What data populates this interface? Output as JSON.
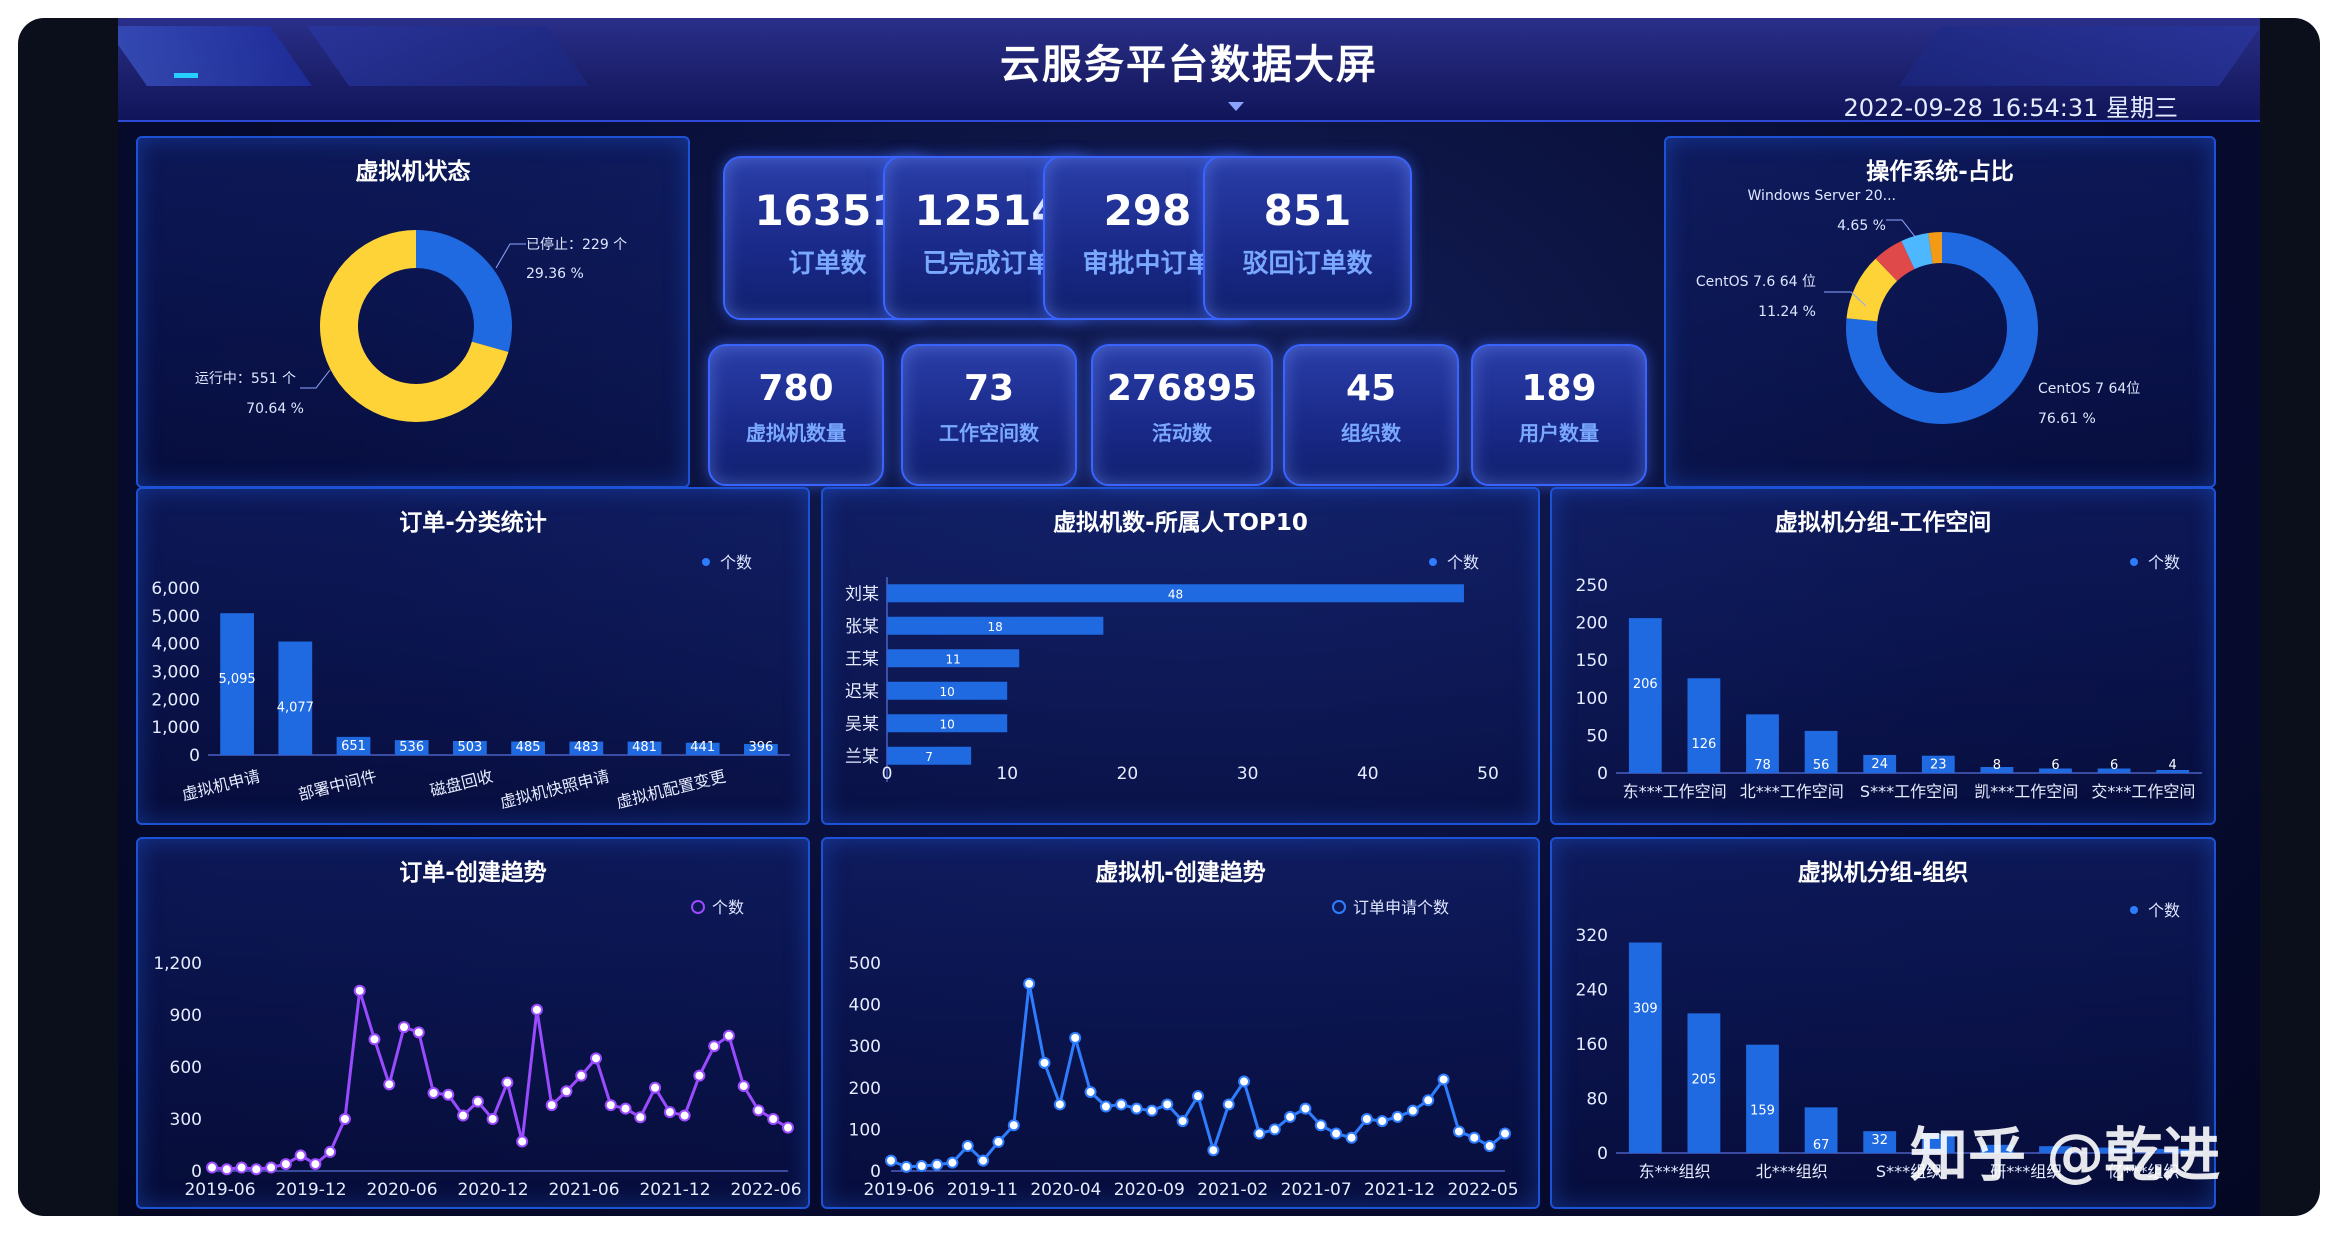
{
  "header": {
    "title": "云服务平台数据大屏",
    "datetime": "2022-09-28 16:54:31 星期三"
  },
  "kpis_top": [
    {
      "value": "16351",
      "label": "订单数"
    },
    {
      "value": "12514",
      "label": "已完成订单"
    },
    {
      "value": "298",
      "label": "审批中订单"
    },
    {
      "value": "851",
      "label": "驳回订单数"
    }
  ],
  "kpis_bottom": [
    {
      "value": "780",
      "label": "虚拟机数量"
    },
    {
      "value": "73",
      "label": "工作空间数"
    },
    {
      "value": "276895",
      "label": "活动数"
    },
    {
      "value": "45",
      "label": "组织数"
    },
    {
      "value": "189",
      "label": "用户数量"
    }
  ],
  "panels": {
    "vm_status": "虚拟机状态",
    "os_share": "操作系统-占比",
    "order_category": "订单-分类统计",
    "vm_top10": "虚拟机数-所属人TOP10",
    "vm_group_workspace": "虚拟机分组-工作空间",
    "order_trend": "订单-创建趋势",
    "vm_trend": "虚拟机-创建趋势",
    "vm_group_org": "虚拟机分组-组织"
  },
  "watermark": "知乎 @乾进",
  "colors": {
    "blue": "#1f6ae0",
    "yellow": "#fdd338",
    "red": "#e0494a",
    "orange": "#f39a17",
    "cyan": "#4db8ff",
    "purple": "#9b4bff",
    "line_blue": "#2f7dff"
  },
  "chart_data": [
    {
      "type": "pie",
      "id": "vm_status",
      "title": "虚拟机状态",
      "slices": [
        {
          "label_top": "已停止：229 个",
          "label_bottom": "29.36 %",
          "value": 229
        },
        {
          "label_top": "运行中：551 个",
          "label_bottom": "70.64 %",
          "value": 551
        }
      ]
    },
    {
      "type": "pie",
      "id": "os_share",
      "title": "操作系统-占比",
      "slices": [
        {
          "label_top": "CentOS 7 64位",
          "label_bottom": "76.61 %",
          "value": 76.61
        },
        {
          "label_top": "CentOS 7.6 64 位",
          "label_bottom": "11.24 %",
          "value": 11.24
        },
        {
          "label_top": "",
          "label_bottom": "",
          "value": 5.2
        },
        {
          "label_top": "Windows Server 20...",
          "label_bottom": "4.65 %",
          "value": 4.65
        },
        {
          "label_top": "",
          "label_bottom": "",
          "value": 2.3
        }
      ]
    },
    {
      "type": "bar",
      "id": "order_category",
      "title": "订单-分类统计",
      "legend": "个数",
      "categories": [
        "虚拟机申请",
        "",
        "部署中间件",
        "",
        "磁盘回收",
        "",
        "虚拟机快照申请",
        "",
        "虚拟机配置变更",
        ""
      ],
      "values": [
        5095,
        4077,
        651,
        536,
        503,
        485,
        483,
        481,
        441,
        396
      ],
      "data_labels": [
        "5,095",
        "4,077",
        "651",
        "536",
        "503",
        "485",
        "483",
        "481",
        "441",
        "396"
      ],
      "ylim": [
        0,
        6000
      ],
      "yticks": [
        "0",
        "1,000",
        "2,000",
        "3,000",
        "4,000",
        "5,000",
        "6,000"
      ]
    },
    {
      "type": "bar",
      "id": "vm_top10",
      "title": "虚拟机数-所属人TOP10",
      "legend": "个数",
      "orientation": "horizontal",
      "categories": [
        "刘某",
        "张某",
        "王某",
        "迟某",
        "吴某",
        "兰某"
      ],
      "values": [
        48,
        18,
        11,
        10,
        10,
        7
      ],
      "xlim": [
        0,
        50
      ],
      "xticks": [
        "0",
        "10",
        "20",
        "30",
        "40",
        "50"
      ]
    },
    {
      "type": "bar",
      "id": "vm_group_workspace",
      "title": "虚拟机分组-工作空间",
      "legend": "个数",
      "categories": [
        "东***工作空间",
        "",
        "北***工作空间",
        "",
        "S***工作空间",
        "",
        "凯***工作空间",
        "",
        "交***工作空间",
        ""
      ],
      "values": [
        206,
        126,
        78,
        56,
        24,
        23,
        8,
        6,
        6,
        4
      ],
      "ylim": [
        0,
        250
      ],
      "yticks": [
        "0",
        "50",
        "100",
        "150",
        "200",
        "250"
      ]
    },
    {
      "type": "line",
      "id": "order_trend",
      "title": "订单-创建趋势",
      "legend": "个数",
      "xticks": [
        "2019-06",
        "2019-12",
        "2020-06",
        "2020-12",
        "2021-06",
        "2021-12",
        "2022-06"
      ],
      "ylim": [
        0,
        1200
      ],
      "yticks": [
        "0",
        "300",
        "600",
        "900",
        "1,200"
      ],
      "values": [
        20,
        10,
        20,
        10,
        20,
        40,
        90,
        40,
        110,
        300,
        1040,
        760,
        500,
        830,
        800,
        450,
        440,
        320,
        400,
        300,
        510,
        170,
        930,
        380,
        460,
        550,
        650,
        380,
        360,
        310,
        480,
        340,
        320,
        550,
        720,
        780,
        490,
        350,
        300,
        250
      ]
    },
    {
      "type": "line",
      "id": "vm_trend",
      "title": "虚拟机-创建趋势",
      "legend": "订单申请个数",
      "xticks": [
        "2019-06",
        "2019-11",
        "2020-04",
        "2020-09",
        "2021-02",
        "2021-07",
        "2021-12",
        "2022-05"
      ],
      "ylim": [
        0,
        500
      ],
      "yticks": [
        "0",
        "100",
        "200",
        "300",
        "400",
        "500"
      ],
      "values": [
        25,
        10,
        12,
        15,
        20,
        60,
        25,
        70,
        110,
        450,
        260,
        160,
        320,
        190,
        155,
        160,
        150,
        145,
        160,
        120,
        180,
        50,
        160,
        215,
        90,
        100,
        130,
        150,
        110,
        90,
        80,
        125,
        120,
        130,
        145,
        170,
        220,
        95,
        80,
        60,
        90
      ]
    },
    {
      "type": "bar",
      "id": "vm_group_org",
      "title": "虚拟机分组-组织",
      "legend": "个数",
      "categories": [
        "东***组织",
        "",
        "北***组织",
        "",
        "S***组织",
        "",
        "研***组织",
        "",
        "亿***组织",
        ""
      ],
      "values": [
        309,
        205,
        159,
        67,
        32,
        28,
        12,
        10,
        8,
        6
      ],
      "data_labels": [
        "309",
        "205",
        "159",
        "67",
        "32",
        "",
        "",
        "",
        "",
        ""
      ],
      "ylim": [
        0,
        320
      ],
      "yticks": [
        "0",
        "80",
        "160",
        "240",
        "320"
      ]
    }
  ]
}
